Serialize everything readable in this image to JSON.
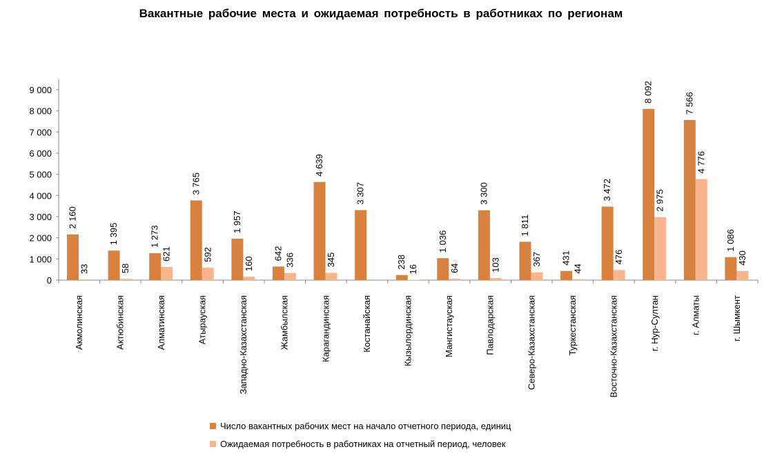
{
  "chart_data": {
    "type": "bar",
    "title": "Вакантные рабочие места и ожидаемая потребность в работниках по регионам",
    "xlabel": "",
    "ylabel": "",
    "ylim": [
      0,
      9500
    ],
    "yticks": [
      0,
      1000,
      2000,
      3000,
      4000,
      5000,
      6000,
      7000,
      8000,
      9000
    ],
    "ytick_labels": [
      "0",
      "1 000",
      "2 000",
      "3 000",
      "4 000",
      "5 000",
      "6 000",
      "7 000",
      "8 000",
      "9 000"
    ],
    "grid": false,
    "legend_position": "bottom",
    "categories": [
      "Акмолинская",
      "Актюбинская",
      "Алматинская",
      "Атырауская",
      "Западно-Казахстанская",
      "Жамбылская",
      "Карагандинская",
      "Костанайская",
      "Кызылординская",
      "Мангистауская",
      "Павлодарская",
      "Северо-Казахстанская",
      "Туркестанская",
      "Восточно-Казахстанская",
      "г. Нур-Султан",
      "г. Алматы",
      "г. Шымкент"
    ],
    "series": [
      {
        "name": "Число вакантных рабочих мест на начало отчетного периода, единиц",
        "color": "#D9823F",
        "values": [
          2160,
          1395,
          1273,
          3765,
          1957,
          642,
          4639,
          3307,
          238,
          1036,
          3300,
          1811,
          431,
          3472,
          8092,
          7566,
          1086
        ],
        "labels": [
          "2 160",
          "1 395",
          "1 273",
          "3 765",
          "1 957",
          "642",
          "4 639",
          "3 307",
          "238",
          "1 036",
          "3 300",
          "1 811",
          "431",
          "3 472",
          "8 092",
          "7 566",
          "1 086"
        ]
      },
      {
        "name": "Ожидаемая потребность в работниках на отчетный период, человек",
        "color": "#F8B58E",
        "values": [
          33,
          58,
          621,
          592,
          160,
          336,
          345,
          0,
          16,
          64,
          103,
          367,
          44,
          476,
          2975,
          4776,
          430
        ],
        "labels": [
          "33",
          "58",
          "621",
          "592",
          "160",
          "336",
          "345",
          "",
          "16",
          "64",
          "103",
          "367",
          "44",
          "476",
          "2 975",
          "4 776",
          "430"
        ]
      }
    ]
  }
}
